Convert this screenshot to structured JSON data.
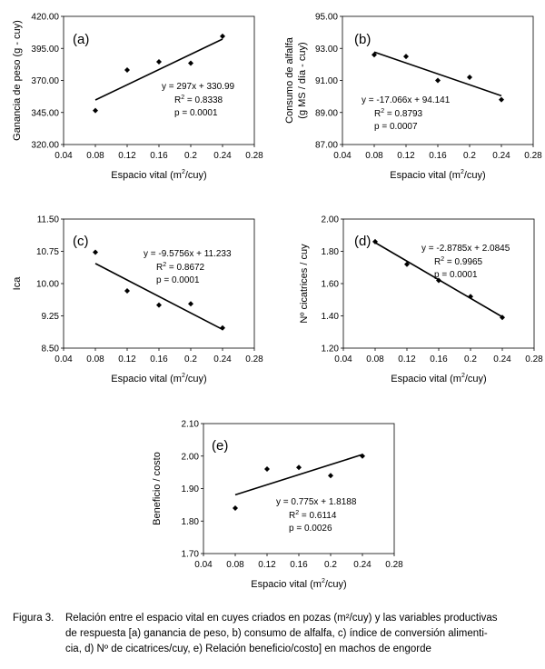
{
  "chart_data": [
    {
      "type": "scatter",
      "panel_label": "(a)",
      "xlabel": "Espacio vital (m",
      "xlabel_sup": "2",
      "xlabel_end": "/cuy)",
      "ylabel": "Ganancia de peso (g - cuy)",
      "xlim": [
        0.04,
        0.28
      ],
      "ylim": [
        320,
        420
      ],
      "xticks": [
        "0.04",
        "0.08",
        "0.12",
        "0.16",
        "0.2",
        "0.24",
        "0.28"
      ],
      "yticks": [
        "320.00",
        "345.00",
        "370.00",
        "395.00",
        "420.00"
      ],
      "x": [
        0.08,
        0.12,
        0.16,
        0.2,
        0.24
      ],
      "y": [
        346.5,
        378.2,
        384.5,
        383.5,
        404.5
      ],
      "trendline": {
        "slope": 297,
        "intercept": 330.99
      },
      "equation": "y = 297x + 330.99",
      "r2_prefix": "R",
      "r2_sup": "2",
      "r2_value": " = 0.8338",
      "p_text": "p = 0.0001"
    },
    {
      "type": "scatter",
      "panel_label": "(b)",
      "xlabel": "Espacio vital (m",
      "xlabel_sup": "2",
      "xlabel_end": "/cuy)",
      "ylabel": "Consumo de alfalfa",
      "ylabel2": "(g MS / día - cuy)",
      "xlim": [
        0.04,
        0.28
      ],
      "ylim": [
        87,
        95
      ],
      "xticks": [
        "0.04",
        "0.08",
        "0.12",
        "0.16",
        "0.2",
        "0.24",
        "0.28"
      ],
      "yticks": [
        "87.00",
        "89.00",
        "91.00",
        "93.00",
        "95.00"
      ],
      "x": [
        0.08,
        0.12,
        0.16,
        0.2,
        0.24
      ],
      "y": [
        92.6,
        92.5,
        91.0,
        91.2,
        89.8
      ],
      "trendline": {
        "slope": -17.066,
        "intercept": 94.141
      },
      "equation": "y = -17.066x + 94.141",
      "r2_prefix": "R",
      "r2_sup": "2",
      "r2_value": " = 0.8793",
      "p_text": "p = 0.0007"
    },
    {
      "type": "scatter",
      "panel_label": "(c)",
      "xlabel": "Espacio vital (m",
      "xlabel_sup": "2",
      "xlabel_end": "/cuy)",
      "ylabel": "Ica",
      "xlim": [
        0.04,
        0.28
      ],
      "ylim": [
        8.5,
        11.5
      ],
      "xticks": [
        "0.04",
        "0.08",
        "0.12",
        "0.16",
        "0.2",
        "0.24",
        "0.28"
      ],
      "yticks": [
        "8.50",
        "9.25",
        "10.00",
        "10.75",
        "11.50"
      ],
      "x": [
        0.08,
        0.12,
        0.16,
        0.2,
        0.24
      ],
      "y": [
        10.73,
        9.83,
        9.5,
        9.53,
        8.97
      ],
      "trendline": {
        "slope": -9.5756,
        "intercept": 11.233
      },
      "equation": "y = -9.5756x + 11.233",
      "r2_prefix": "R",
      "r2_sup": "2",
      "r2_value": " = 0.8672",
      "p_text": "p = 0.0001"
    },
    {
      "type": "scatter",
      "panel_label": "(d)",
      "xlabel": "Espacio vital (m",
      "xlabel_sup": "2",
      "xlabel_end": "/cuy)",
      "ylabel": "Nº cicatrices / cuy",
      "xlim": [
        0.04,
        0.28
      ],
      "ylim": [
        1.2,
        2.0
      ],
      "xticks": [
        "0.04",
        "0.08",
        "0.12",
        "0.16",
        "0.2",
        "0.24",
        "0.28"
      ],
      "yticks": [
        "1.20",
        "1.40",
        "1.60",
        "1.80",
        "2.00"
      ],
      "x": [
        0.08,
        0.12,
        0.16,
        0.2,
        0.24
      ],
      "y": [
        1.86,
        1.72,
        1.62,
        1.52,
        1.39
      ],
      "trendline": {
        "slope": -2.8785,
        "intercept": 2.0845
      },
      "equation": "y = -2.8785x + 2.0845",
      "r2_prefix": "R",
      "r2_sup": "2",
      "r2_value": " = 0.9965",
      "p_text": "p = 0.0001"
    },
    {
      "type": "scatter",
      "panel_label": "(e)",
      "xlabel": "Espacio vital (m",
      "xlabel_sup": "2",
      "xlabel_end": "/cuy)",
      "ylabel": "Beneficio / costo",
      "xlim": [
        0.04,
        0.28
      ],
      "ylim": [
        1.7,
        2.1
      ],
      "xticks": [
        "0.04",
        "0.08",
        "0.12",
        "0.16",
        "0.2",
        "0.24",
        "0.28"
      ],
      "yticks": [
        "1.70",
        "1.80",
        "1.90",
        "2.00",
        "2.10"
      ],
      "x": [
        0.08,
        0.12,
        0.16,
        0.2,
        0.24
      ],
      "y": [
        1.84,
        1.96,
        1.965,
        1.94,
        2.0
      ],
      "trendline": {
        "slope": 0.775,
        "intercept": 1.8188
      },
      "equation": "y = 0.775x + 1.8188",
      "r2_prefix": "R",
      "r2_sup": "2",
      "r2_value": " = 0.6114",
      "p_text": "p = 0.0026"
    }
  ],
  "caption": {
    "label": "Figura 3.",
    "line1": "Relación entre el espacio vital en cuyes criados en pozas (m²/cuy) y las variables productivas",
    "line2": "de respuesta [a) ganancia de peso, b) consumo de alfalfa, c) índice de conversión alimenti-",
    "line3": "cia, d) Nº de cicatrices/cuy, e) Relación beneficio/costo] en machos de engorde"
  }
}
